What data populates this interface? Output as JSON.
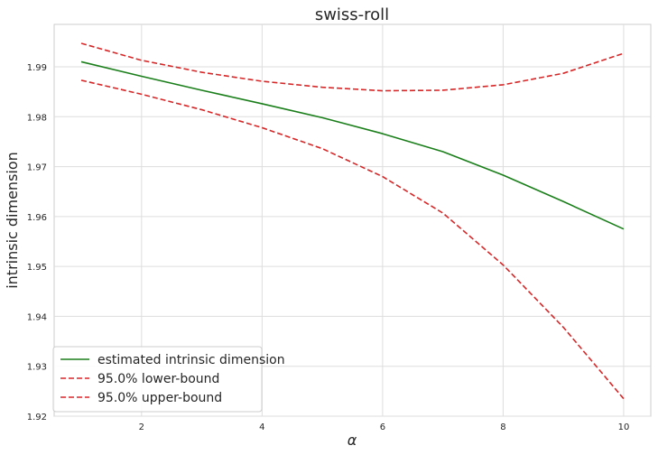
{
  "chart_data": {
    "type": "line",
    "title": "swiss-roll",
    "xlabel": "α",
    "ylabel": "intrinsic dimension",
    "x": [
      1,
      2,
      3,
      4,
      5,
      6,
      7,
      8,
      9,
      10
    ],
    "xlim": [
      0.55,
      10.45
    ],
    "ylim": [
      1.92,
      1.9985
    ],
    "xticks": [
      2,
      4,
      6,
      8,
      10
    ],
    "xtick_labels": [
      "2",
      "4",
      "6",
      "8",
      "10"
    ],
    "yticks": [
      1.92,
      1.93,
      1.94,
      1.95,
      1.96,
      1.97,
      1.98,
      1.99
    ],
    "ytick_labels": [
      "1.92",
      "1.93",
      "1.94",
      "1.95",
      "1.96",
      "1.97",
      "1.98",
      "1.99"
    ],
    "grid": true,
    "legend_position": "lower-left",
    "series": [
      {
        "name": "estimated intrinsic dimension",
        "color": "#1a7f1a",
        "dash": "solid",
        "values": [
          1.991,
          1.9881,
          1.9853,
          1.9826,
          1.9798,
          1.9766,
          1.973,
          1.9683,
          1.963,
          1.9575
        ]
      },
      {
        "name": "95.0% lower-bound",
        "color": "#d62728",
        "dash": "dashed",
        "values": [
          1.9873,
          1.9845,
          1.9814,
          1.9778,
          1.9736,
          1.968,
          1.9607,
          1.9503,
          1.9378,
          1.9235
        ]
      },
      {
        "name": "95.0% upper-bound",
        "color": "#d62728",
        "dash": "dashed",
        "values": [
          1.9947,
          1.9913,
          1.9889,
          1.9871,
          1.9859,
          1.9852,
          1.9853,
          1.9864,
          1.9887,
          1.9927
        ]
      }
    ]
  }
}
